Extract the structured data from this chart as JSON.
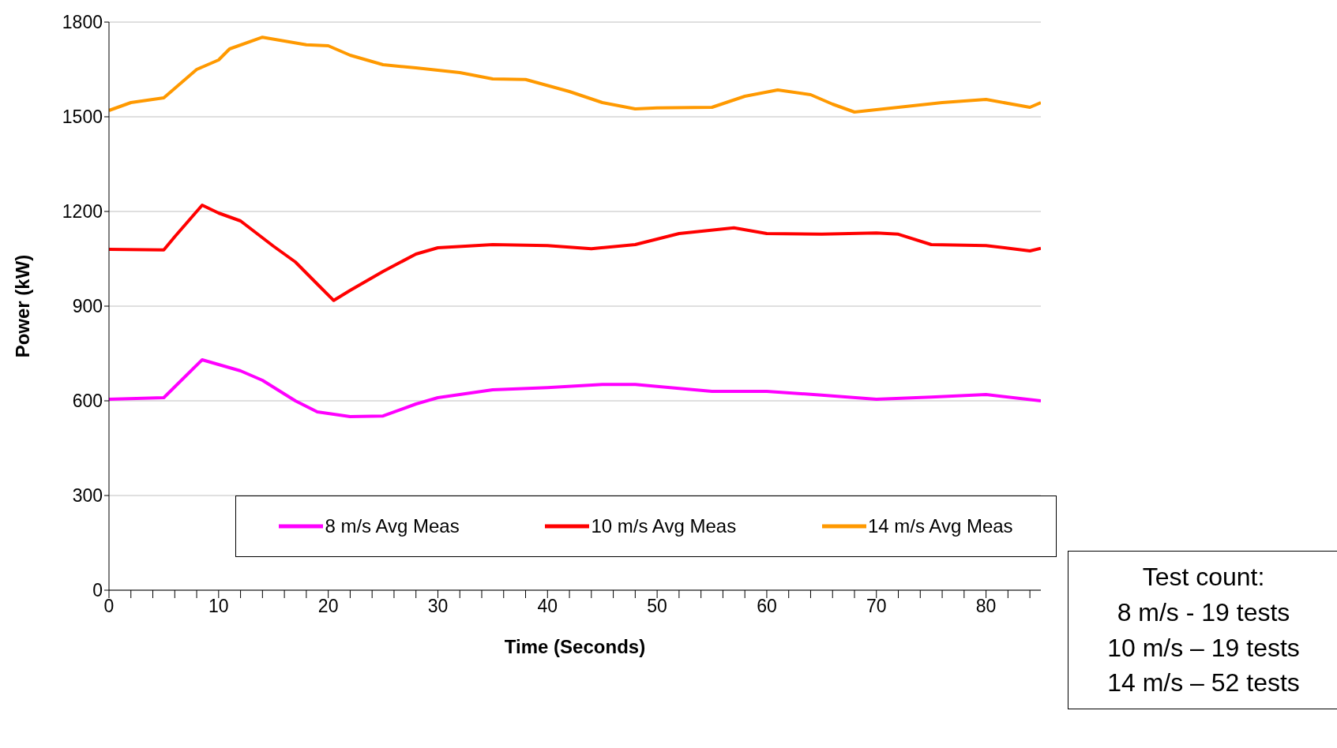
{
  "chart_data": {
    "type": "line",
    "xlabel": "Time (Seconds)",
    "ylabel": "Power (kW)",
    "xlim": [
      0,
      85
    ],
    "xticks": [
      0,
      {
        "value": 2,
        "label": null
      },
      {
        "value": 4,
        "label": null
      },
      {
        "value": 6,
        "label": null
      },
      {
        "value": 8,
        "label": null
      },
      10,
      {
        "value": 12,
        "label": null
      },
      {
        "value": 14,
        "label": null
      },
      {
        "value": 16,
        "label": null
      },
      {
        "value": 18,
        "label": null
      },
      20,
      {
        "value": 22,
        "label": null
      },
      {
        "value": 24,
        "label": null
      },
      {
        "value": 26,
        "label": null
      },
      {
        "value": 28,
        "label": null
      },
      30,
      {
        "value": 32,
        "label": null
      },
      {
        "value": 34,
        "label": null
      },
      {
        "value": 36,
        "label": null
      },
      {
        "value": 38,
        "label": null
      },
      40,
      {
        "value": 42,
        "label": null
      },
      {
        "value": 44,
        "label": null
      },
      {
        "value": 46,
        "label": null
      },
      {
        "value": 48,
        "label": null
      },
      50,
      {
        "value": 52,
        "label": null
      },
      {
        "value": 54,
        "label": null
      },
      {
        "value": 56,
        "label": null
      },
      {
        "value": 58,
        "label": null
      },
      60,
      {
        "value": 62,
        "label": null
      },
      {
        "value": 64,
        "label": null
      },
      {
        "value": 66,
        "label": null
      },
      {
        "value": 68,
        "label": null
      },
      70,
      {
        "value": 72,
        "label": null
      },
      {
        "value": 74,
        "label": null
      },
      {
        "value": 76,
        "label": null
      },
      {
        "value": 78,
        "label": null
      },
      80,
      {
        "value": 82,
        "label": null
      },
      {
        "value": 84,
        "label": null
      }
    ],
    "ylim": [
      0,
      1800
    ],
    "yticks": [
      0,
      300,
      600,
      900,
      1200,
      1500,
      1800
    ],
    "grid": "y",
    "legend": "bottom",
    "marker": "none",
    "line_style": "solid",
    "series": [
      {
        "name": "8 m/s Avg Meas",
        "color": "#ff00ff",
        "x": [
          0,
          5,
          8.5,
          12,
          14,
          17,
          19,
          22,
          25,
          28,
          30,
          35,
          40,
          45,
          48,
          55,
          60,
          65,
          70,
          75,
          80,
          85
        ],
        "values": [
          605,
          610,
          730,
          695,
          665,
          600,
          565,
          550,
          552,
          590,
          610,
          635,
          642,
          652,
          652,
          630,
          630,
          618,
          605,
          612,
          620,
          600
        ]
      },
      {
        "name": "10 m/s Avg Meas",
        "color": "#ff0000",
        "x": [
          0,
          5,
          6,
          8.5,
          10,
          12,
          15,
          17,
          19,
          20.5,
          22,
          25,
          28,
          30,
          35,
          40,
          44,
          48,
          52,
          57,
          60,
          65,
          70,
          72,
          75,
          80,
          84,
          85
        ],
        "values": [
          1080,
          1078,
          1120,
          1220,
          1195,
          1170,
          1090,
          1040,
          970,
          918,
          950,
          1010,
          1065,
          1085,
          1095,
          1092,
          1082,
          1095,
          1130,
          1148,
          1130,
          1128,
          1132,
          1128,
          1095,
          1092,
          1075,
          1083
        ]
      },
      {
        "name": "14 m/s Avg Meas",
        "color": "#ff9900",
        "x": [
          0,
          2,
          5,
          8,
          10,
          11,
          14,
          16,
          18,
          20,
          22,
          25,
          28,
          32,
          35,
          38,
          42,
          45,
          48,
          50,
          55,
          58,
          61,
          64,
          66,
          68,
          72,
          76,
          80,
          84,
          85
        ],
        "values": [
          1520,
          1545,
          1560,
          1650,
          1680,
          1715,
          1752,
          1740,
          1728,
          1725,
          1695,
          1665,
          1655,
          1640,
          1620,
          1618,
          1580,
          1545,
          1525,
          1528,
          1530,
          1565,
          1585,
          1570,
          1540,
          1515,
          1530,
          1545,
          1555,
          1530,
          1545
        ]
      }
    ],
    "annotations": [
      "Test count:\n8 m/s -  19 tests\n10 m/s – 19 tests\n14 m/s – 52 tests"
    ]
  }
}
